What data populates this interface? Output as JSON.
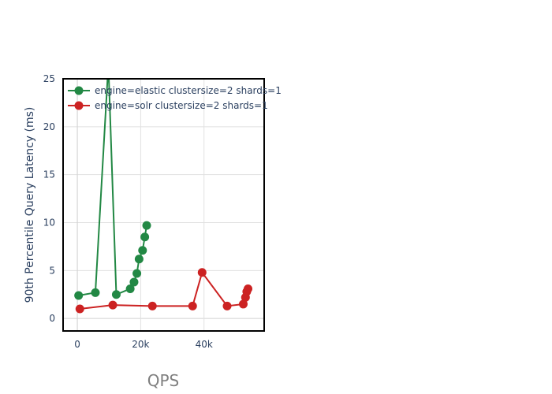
{
  "chart_data": {
    "type": "line",
    "xlabel": "QPS",
    "ylabel": "90th Percentile Query Latency (ms)",
    "xlim": [
      -4500,
      59000
    ],
    "ylim": [
      -1.3,
      25
    ],
    "x_ticks": [
      0,
      20000,
      40000
    ],
    "x_tick_labels": [
      "0",
      "20k",
      "40k"
    ],
    "y_ticks": [
      0,
      5,
      10,
      15,
      20,
      25
    ],
    "y_tick_labels": [
      "0",
      "5",
      "10",
      "15",
      "20",
      "25"
    ],
    "grid": true,
    "legend_position": "top-left",
    "series": [
      {
        "name": "engine=elastic clustersize=2 shards=1",
        "color": "#228844",
        "x": [
          400,
          5700,
          9800,
          12300,
          16700,
          17900,
          18800,
          19500,
          20600,
          21300,
          21900
        ],
        "y": [
          2.4,
          2.7,
          26.5,
          2.5,
          3.1,
          3.8,
          4.7,
          6.2,
          7.1,
          8.5,
          9.7
        ]
      },
      {
        "name": "engine=solr clustersize=2 shards=1",
        "color": "#cc2222",
        "x": [
          800,
          11200,
          23700,
          36400,
          39400,
          47300,
          52400,
          53100,
          53500,
          53900
        ],
        "y": [
          1.0,
          1.4,
          1.3,
          1.3,
          4.8,
          1.3,
          1.5,
          2.2,
          2.8,
          3.1
        ]
      }
    ]
  }
}
